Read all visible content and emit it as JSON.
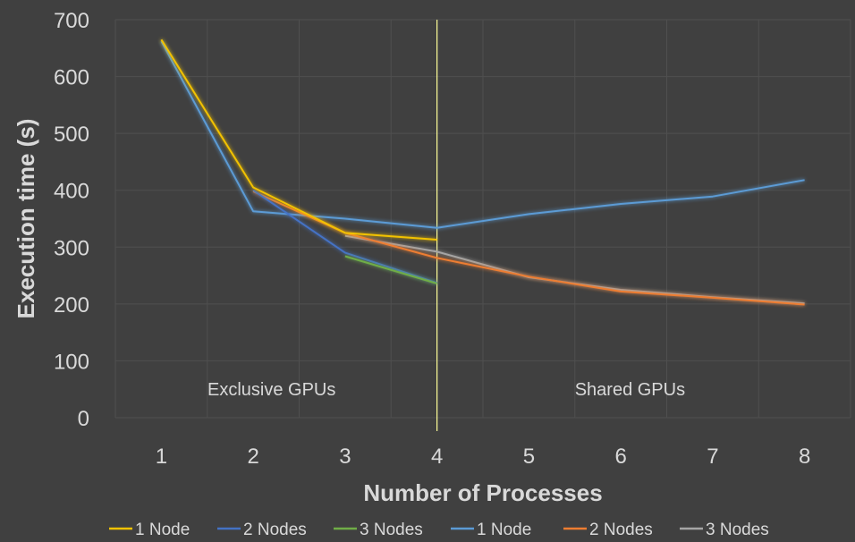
{
  "chart_data": {
    "type": "line",
    "title": "",
    "xlabel": "Number of Processes",
    "ylabel": "Execution time (s)",
    "x": [
      1,
      2,
      3,
      4,
      5,
      6,
      7,
      8
    ],
    "xlim": [
      0.5,
      8.5
    ],
    "ylim": [
      0,
      700
    ],
    "y_ticks": [
      0,
      100,
      200,
      300,
      400,
      500,
      600,
      700
    ],
    "grid": true,
    "legend_position": "bottom",
    "divider_x": 4,
    "annotations": [
      {
        "text": "Exclusive GPUs",
        "x": 2.2,
        "y": 50
      },
      {
        "text": "Shared GPUs",
        "x": 6.1,
        "y": 50
      }
    ],
    "series": [
      {
        "name": "1 Node",
        "color": "#f2c200",
        "x": [
          1,
          2,
          3,
          4
        ],
        "values": [
          665,
          405,
          325,
          313
        ]
      },
      {
        "name": "2 Nodes",
        "color": "#4472c4",
        "x": [
          2,
          3,
          4
        ],
        "values": [
          400,
          290,
          237
        ]
      },
      {
        "name": "3 Nodes",
        "color": "#70ad47",
        "x": [
          3,
          4
        ],
        "values": [
          284,
          236
        ]
      },
      {
        "name": "1 Node",
        "color": "#5b9bd5",
        "x": [
          1,
          2,
          3,
          4,
          5,
          6,
          7,
          8
        ],
        "values": [
          662,
          363,
          350,
          334,
          358,
          376,
          389,
          418
        ]
      },
      {
        "name": "2 Nodes",
        "color": "#ed7d31",
        "x": [
          2,
          3,
          4,
          5,
          6,
          7,
          8
        ],
        "values": [
          398,
          325,
          281,
          248,
          222,
          211,
          199
        ]
      },
      {
        "name": "3 Nodes",
        "color": "#a5a5a5",
        "x": [
          3,
          4,
          5,
          6,
          7,
          8
        ],
        "values": [
          320,
          292,
          247,
          225,
          212,
          201
        ]
      }
    ]
  }
}
